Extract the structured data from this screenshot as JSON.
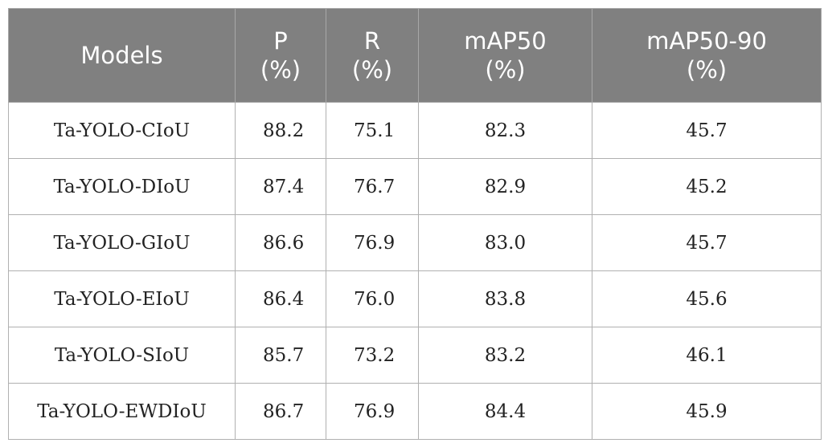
{
  "table": {
    "headers": [
      {
        "line1": "Models",
        "line2": ""
      },
      {
        "line1": "P",
        "line2": "(%)"
      },
      {
        "line1": "R",
        "line2": "(%)"
      },
      {
        "line1": "mAP50",
        "line2": "(%)"
      },
      {
        "line1": "mAP50-90",
        "line2": "(%)"
      }
    ],
    "rows": [
      {
        "model": "Ta-YOLO-CIoU",
        "p": "88.2",
        "r": "75.1",
        "map50": "82.3",
        "map50_90": "45.7"
      },
      {
        "model": "Ta-YOLO-DIoU",
        "p": "87.4",
        "r": "76.7",
        "map50": "82.9",
        "map50_90": "45.2"
      },
      {
        "model": "Ta-YOLO-GIoU",
        "p": "86.6",
        "r": "76.9",
        "map50": "83.0",
        "map50_90": "45.7"
      },
      {
        "model": "Ta-YOLO-EIoU",
        "p": "86.4",
        "r": "76.0",
        "map50": "83.8",
        "map50_90": "45.6"
      },
      {
        "model": "Ta-YOLO-SIoU",
        "p": "85.7",
        "r": "73.2",
        "map50": "83.2",
        "map50_90": "46.1"
      },
      {
        "model": "Ta-YOLO-EWDIoU",
        "p": "86.7",
        "r": "76.9",
        "map50": "84.4",
        "map50_90": "45.9"
      }
    ]
  }
}
